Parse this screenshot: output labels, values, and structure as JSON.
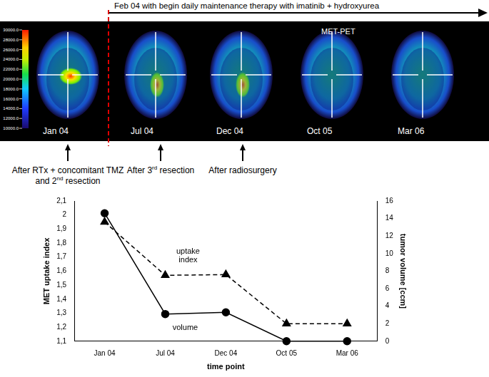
{
  "header": {
    "therapy": "Feb 04 with begin daily maintenance therapy with imatinib + hydroxyurea"
  },
  "pet_panel": {
    "title": "MET-PET",
    "colorbar": {
      "range": [
        10000,
        30000
      ],
      "ticks": [
        {
          "value": 10000,
          "label": "10000.0"
        },
        {
          "value": 12000,
          "label": "12000.0"
        },
        {
          "value": 14000,
          "label": "14000.0"
        },
        {
          "value": 16000,
          "label": "16000.0"
        },
        {
          "value": 18000,
          "label": "18000.0"
        },
        {
          "value": 20000,
          "label": "20000.0"
        },
        {
          "value": 22000,
          "label": "22000.0"
        },
        {
          "value": 24000,
          "label": "24000.0"
        },
        {
          "value": 26000,
          "label": "26000.0"
        },
        {
          "value": 28000,
          "label": "28000.0"
        },
        {
          "value": 30000,
          "label": "30000.0"
        }
      ]
    },
    "panels": [
      {
        "label": "Jan 04",
        "note": "After RTx + concomitant TMZ and 2nd resection"
      },
      {
        "label": "Jul 04",
        "note": "After 3rd resection"
      },
      {
        "label": "Dec 04",
        "note": "After radiosurgery"
      },
      {
        "label": "Oct 05"
      },
      {
        "label": "Mar 06"
      }
    ]
  },
  "chart_data": {
    "type": "line",
    "x_label": "time point",
    "y_label": "MET uptake index",
    "y2_label": "tumor volume [ccm]",
    "categories": [
      "Jan 04",
      "Jul 04",
      "Dec 04",
      "Oct 05",
      "Mar 06"
    ],
    "ylim": [
      1.1,
      2.1
    ],
    "yticks": [
      {
        "value": 1.1,
        "label": "1,1"
      },
      {
        "value": 1.2,
        "label": "1,2"
      },
      {
        "value": 1.3,
        "label": "1,3"
      },
      {
        "value": 1.4,
        "label": "1,4"
      },
      {
        "value": 1.5,
        "label": "1,5"
      },
      {
        "value": 1.6,
        "label": "1,6"
      },
      {
        "value": 1.7,
        "label": "1,7"
      },
      {
        "value": 1.8,
        "label": "1,8"
      },
      {
        "value": 1.9,
        "label": "1,9"
      },
      {
        "value": 2,
        "label": "2"
      },
      {
        "value": 2.1,
        "label": "2,1"
      }
    ],
    "y2lim": [
      0,
      16
    ],
    "y2ticks": [
      0,
      2,
      4,
      6,
      8,
      10,
      12,
      14,
      16
    ],
    "grid": false,
    "series": [
      {
        "name": "uptake index",
        "color": "#000000",
        "values": [
          1.95,
          1.57,
          1.575,
          1.225,
          1.225
        ],
        "marker": "triangle",
        "line_style": "dashed"
      },
      {
        "name": "volume",
        "color": "#000000",
        "values": [
          14.6,
          3.1,
          3.3,
          0,
          0
        ],
        "marker": "circle",
        "line_style": "solid",
        "axis": "y2"
      }
    ]
  }
}
